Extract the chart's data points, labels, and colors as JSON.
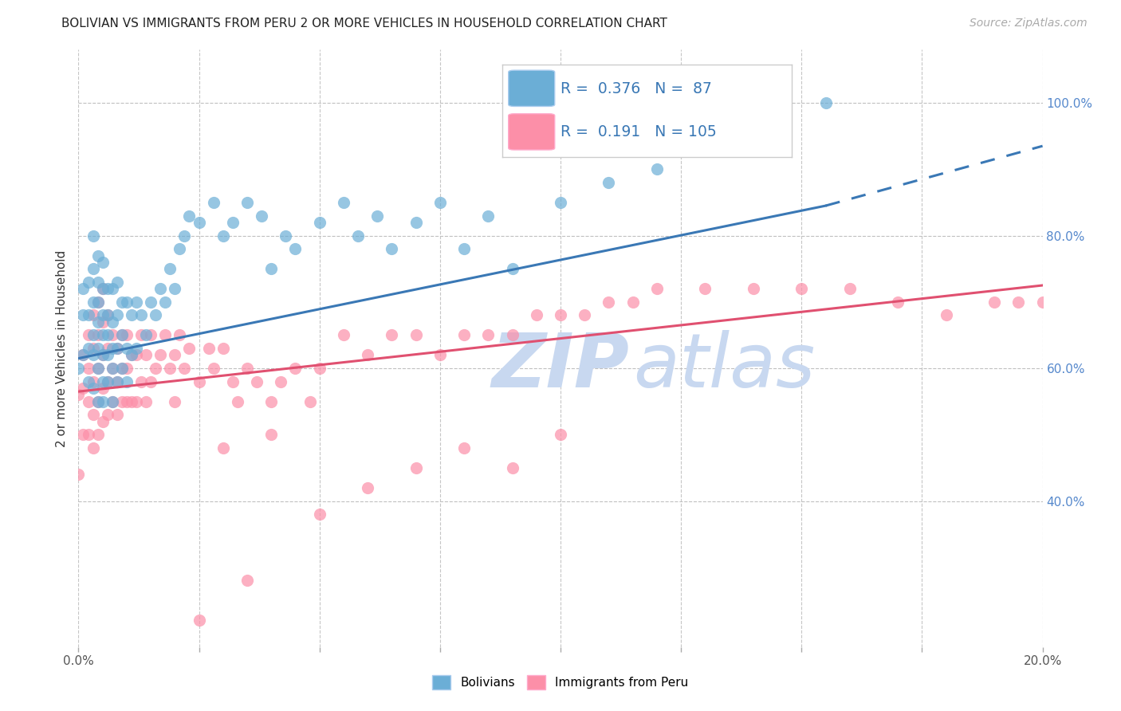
{
  "title": "BOLIVIAN VS IMMIGRANTS FROM PERU 2 OR MORE VEHICLES IN HOUSEHOLD CORRELATION CHART",
  "source_text": "Source: ZipAtlas.com",
  "ylabel": "2 or more Vehicles in Household",
  "legend_blue_label": "Bolivians",
  "legend_pink_label": "Immigrants from Peru",
  "blue_R": 0.376,
  "blue_N": 87,
  "pink_R": 0.191,
  "pink_N": 105,
  "blue_color": "#6baed6",
  "pink_color": "#fc8fa8",
  "blue_line_color": "#3a78b5",
  "pink_line_color": "#e05070",
  "watermark_color": "#c8d8f0",
  "xlim": [
    0.0,
    0.2
  ],
  "ylim": [
    0.18,
    1.08
  ],
  "y_ticks_right": [
    0.4,
    0.6,
    0.8,
    1.0
  ],
  "blue_scatter_x": [
    0.0,
    0.001,
    0.001,
    0.001,
    0.002,
    0.002,
    0.002,
    0.002,
    0.003,
    0.003,
    0.003,
    0.003,
    0.003,
    0.003,
    0.004,
    0.004,
    0.004,
    0.004,
    0.004,
    0.004,
    0.004,
    0.005,
    0.005,
    0.005,
    0.005,
    0.005,
    0.005,
    0.005,
    0.006,
    0.006,
    0.006,
    0.006,
    0.006,
    0.007,
    0.007,
    0.007,
    0.007,
    0.007,
    0.008,
    0.008,
    0.008,
    0.008,
    0.009,
    0.009,
    0.009,
    0.01,
    0.01,
    0.01,
    0.011,
    0.011,
    0.012,
    0.012,
    0.013,
    0.014,
    0.015,
    0.016,
    0.017,
    0.018,
    0.019,
    0.02,
    0.021,
    0.022,
    0.023,
    0.025,
    0.028,
    0.03,
    0.032,
    0.035,
    0.038,
    0.04,
    0.043,
    0.045,
    0.05,
    0.055,
    0.058,
    0.062,
    0.065,
    0.07,
    0.075,
    0.08,
    0.085,
    0.09,
    0.1,
    0.11,
    0.12,
    0.135,
    0.155
  ],
  "blue_scatter_y": [
    0.6,
    0.62,
    0.68,
    0.72,
    0.58,
    0.63,
    0.68,
    0.73,
    0.57,
    0.62,
    0.65,
    0.7,
    0.75,
    0.8,
    0.55,
    0.6,
    0.63,
    0.67,
    0.7,
    0.73,
    0.77,
    0.55,
    0.58,
    0.62,
    0.65,
    0.68,
    0.72,
    0.76,
    0.58,
    0.62,
    0.65,
    0.68,
    0.72,
    0.55,
    0.6,
    0.63,
    0.67,
    0.72,
    0.58,
    0.63,
    0.68,
    0.73,
    0.6,
    0.65,
    0.7,
    0.58,
    0.63,
    0.7,
    0.62,
    0.68,
    0.63,
    0.7,
    0.68,
    0.65,
    0.7,
    0.68,
    0.72,
    0.7,
    0.75,
    0.72,
    0.78,
    0.8,
    0.83,
    0.82,
    0.85,
    0.8,
    0.82,
    0.85,
    0.83,
    0.75,
    0.8,
    0.78,
    0.82,
    0.85,
    0.8,
    0.83,
    0.78,
    0.82,
    0.85,
    0.78,
    0.83,
    0.75,
    0.85,
    0.88,
    0.9,
    0.95,
    1.0
  ],
  "pink_scatter_x": [
    0.0,
    0.0,
    0.001,
    0.001,
    0.001,
    0.002,
    0.002,
    0.002,
    0.002,
    0.003,
    0.003,
    0.003,
    0.003,
    0.003,
    0.004,
    0.004,
    0.004,
    0.004,
    0.004,
    0.005,
    0.005,
    0.005,
    0.005,
    0.005,
    0.006,
    0.006,
    0.006,
    0.006,
    0.007,
    0.007,
    0.007,
    0.008,
    0.008,
    0.008,
    0.009,
    0.009,
    0.009,
    0.01,
    0.01,
    0.01,
    0.011,
    0.011,
    0.012,
    0.012,
    0.013,
    0.013,
    0.014,
    0.014,
    0.015,
    0.015,
    0.016,
    0.017,
    0.018,
    0.019,
    0.02,
    0.021,
    0.022,
    0.023,
    0.025,
    0.027,
    0.028,
    0.03,
    0.032,
    0.033,
    0.035,
    0.037,
    0.04,
    0.042,
    0.045,
    0.048,
    0.05,
    0.055,
    0.06,
    0.065,
    0.07,
    0.075,
    0.08,
    0.085,
    0.09,
    0.095,
    0.1,
    0.105,
    0.11,
    0.115,
    0.12,
    0.13,
    0.14,
    0.15,
    0.16,
    0.17,
    0.18,
    0.19,
    0.195,
    0.2,
    0.05,
    0.06,
    0.07,
    0.08,
    0.09,
    0.1,
    0.03,
    0.04,
    0.02,
    0.025,
    0.035
  ],
  "pink_scatter_y": [
    0.44,
    0.56,
    0.5,
    0.57,
    0.62,
    0.5,
    0.55,
    0.6,
    0.65,
    0.48,
    0.53,
    0.58,
    0.63,
    0.68,
    0.5,
    0.55,
    0.6,
    0.65,
    0.7,
    0.52,
    0.57,
    0.62,
    0.67,
    0.72,
    0.53,
    0.58,
    0.63,
    0.68,
    0.55,
    0.6,
    0.65,
    0.53,
    0.58,
    0.63,
    0.55,
    0.6,
    0.65,
    0.55,
    0.6,
    0.65,
    0.55,
    0.62,
    0.55,
    0.62,
    0.58,
    0.65,
    0.55,
    0.62,
    0.58,
    0.65,
    0.6,
    0.62,
    0.65,
    0.6,
    0.62,
    0.65,
    0.6,
    0.63,
    0.58,
    0.63,
    0.6,
    0.63,
    0.58,
    0.55,
    0.6,
    0.58,
    0.55,
    0.58,
    0.6,
    0.55,
    0.6,
    0.65,
    0.62,
    0.65,
    0.65,
    0.62,
    0.65,
    0.65,
    0.65,
    0.68,
    0.68,
    0.68,
    0.7,
    0.7,
    0.72,
    0.72,
    0.72,
    0.72,
    0.72,
    0.7,
    0.68,
    0.7,
    0.7,
    0.7,
    0.38,
    0.42,
    0.45,
    0.48,
    0.45,
    0.5,
    0.48,
    0.5,
    0.55,
    0.22,
    0.28
  ]
}
